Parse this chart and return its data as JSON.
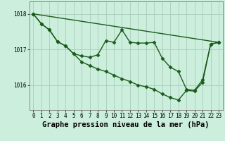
{
  "bg_color": "#cceedd",
  "grid_color": "#aaccbb",
  "line_color": "#1a5c1a",
  "title": "Graphe pression niveau de la mer (hPa)",
  "yticks": [
    1016,
    1017,
    1018
  ],
  "ylim": [
    1015.3,
    1018.35
  ],
  "xlim": [
    -0.5,
    23.5
  ],
  "line1_x": [
    0,
    23
  ],
  "line1_y": [
    1018.0,
    1017.2
  ],
  "line2_x": [
    0,
    1,
    2,
    3,
    4,
    5,
    6,
    7,
    8,
    9,
    10,
    11,
    12,
    13,
    14,
    15,
    16,
    17,
    18,
    19,
    20,
    21,
    22,
    23
  ],
  "line2_y": [
    1018.0,
    1017.72,
    1017.55,
    1017.22,
    1017.1,
    1016.88,
    1016.82,
    1016.78,
    1016.85,
    1017.25,
    1017.2,
    1017.55,
    1017.2,
    1017.18,
    1017.18,
    1017.2,
    1016.75,
    1016.5,
    1016.38,
    1015.88,
    1015.85,
    1016.15,
    1017.15,
    1017.2
  ],
  "line3_x": [
    0,
    1,
    2,
    3,
    4,
    5,
    6,
    7,
    8,
    9,
    10,
    11,
    12,
    13,
    14,
    15,
    16,
    17,
    18,
    19,
    20,
    21,
    22,
    23
  ],
  "line3_y": [
    1018.0,
    1017.72,
    1017.55,
    1017.22,
    1017.1,
    1016.88,
    1016.65,
    1016.55,
    1016.45,
    1016.38,
    1016.28,
    1016.18,
    1016.1,
    1016.0,
    1015.95,
    1015.88,
    1015.75,
    1015.65,
    1015.58,
    1015.85,
    1015.83,
    1016.08,
    1017.15,
    1017.2
  ],
  "marker": "D",
  "markersize": 2.5,
  "linewidth": 1.0,
  "title_fontsize": 7.5,
  "tick_fontsize": 5.5
}
